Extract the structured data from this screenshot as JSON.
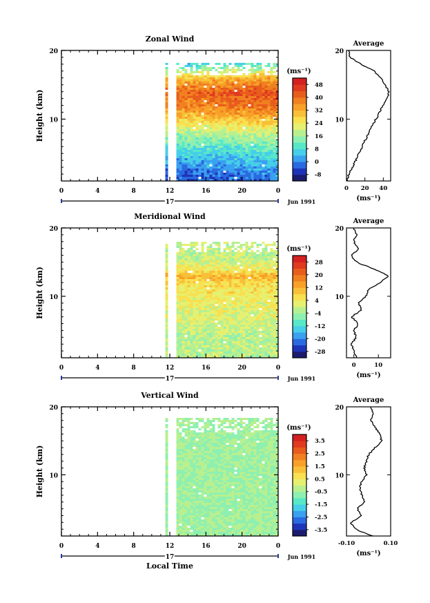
{
  "figure": {
    "xlabel": "Local Time",
    "date_label": "Jun 1991",
    "day_label": "17",
    "xticks": [
      "0",
      "4",
      "8",
      "12",
      "16",
      "20",
      "0"
    ],
    "yticks": [
      "20",
      "10"
    ],
    "ylabel": "Height (km)",
    "unit_label": "(ms⁻¹)",
    "average_title": "Average"
  },
  "chart_data": [
    {
      "type": "heatmap",
      "title": "Zonal Wind",
      "xlabel": "Local Time",
      "ylabel": "Height (km)",
      "xlim": [
        0,
        24
      ],
      "ylim": [
        1,
        20
      ],
      "data_start_hour": 11.5,
      "data_gap_hours": [
        12.1,
        12.6
      ],
      "colorbar": {
        "label": "(ms⁻¹)",
        "ticks": [
          "48",
          "40",
          "32",
          "24",
          "16",
          "8",
          "0",
          "-8"
        ],
        "levels": [
          -8,
          -4,
          0,
          4,
          8,
          12,
          16,
          20,
          24,
          28,
          32,
          36,
          40,
          44,
          48,
          52
        ]
      },
      "height_km": [
        2,
        4,
        6,
        8,
        10,
        12,
        14,
        16,
        18,
        19
      ],
      "mean_value": [
        0,
        6,
        12,
        20,
        30,
        40,
        44,
        34,
        12,
        2
      ],
      "average_profile": {
        "title": "Average",
        "xlabel": "(ms⁻¹)",
        "xticks": [
          "0",
          "20",
          "40"
        ],
        "xlim": [
          0,
          48
        ],
        "height_km": [
          1,
          2,
          4,
          6,
          8,
          10,
          12,
          13,
          14,
          16,
          17,
          18,
          19,
          20
        ],
        "values": [
          0,
          3,
          10,
          17,
          24,
          32,
          40,
          44,
          46,
          38,
          30,
          16,
          4,
          2
        ]
      }
    },
    {
      "type": "heatmap",
      "title": "Meridional Wind",
      "xlabel": "Local Time",
      "ylabel": "Height (km)",
      "xlim": [
        0,
        24
      ],
      "ylim": [
        1,
        20
      ],
      "data_start_hour": 11.5,
      "data_gap_hours": [
        12.1,
        12.6
      ],
      "colorbar": {
        "label": "(ms⁻¹)",
        "ticks": [
          "28",
          "20",
          "12",
          "4",
          "-4",
          "-12",
          "-20",
          "-28"
        ],
        "levels": [
          -28,
          -24,
          -20,
          -16,
          -12,
          -8,
          -4,
          0,
          4,
          8,
          12,
          16,
          20,
          24,
          28,
          32
        ]
      },
      "height_km": [
        2,
        4,
        6,
        8,
        10,
        12,
        13,
        14,
        16,
        18
      ],
      "mean_value": [
        2,
        2,
        4,
        6,
        8,
        10,
        16,
        8,
        2,
        4
      ],
      "average_profile": {
        "title": "Average",
        "xlabel": "(ms⁻¹)",
        "xticks": [
          "0",
          "10"
        ],
        "xlim": [
          -3,
          15
        ],
        "height_km": [
          1,
          2,
          3,
          4,
          5,
          6,
          7,
          8,
          9,
          10,
          11,
          12,
          13,
          14,
          15,
          16,
          17,
          18,
          19,
          20
        ],
        "values": [
          1,
          0,
          -1,
          1,
          0,
          2,
          -1,
          3,
          2,
          5,
          6,
          11,
          14,
          8,
          1,
          -1,
          2,
          0,
          1,
          0
        ]
      }
    },
    {
      "type": "heatmap",
      "title": "Vertical Wind",
      "xlabel": "Local Time",
      "ylabel": "Height (km)",
      "xlim": [
        0,
        24
      ],
      "ylim": [
        1,
        20
      ],
      "data_start_hour": 11.5,
      "data_gap_hours": [
        12.1,
        12.6
      ],
      "colorbar": {
        "label": "(ms⁻¹)",
        "ticks": [
          "3.5",
          "2.5",
          "1.5",
          "0.5",
          "-0.5",
          "-1.5",
          "-2.5",
          "-3.5"
        ],
        "levels": [
          -3.5,
          -3.0,
          -2.5,
          -2.0,
          -1.5,
          -1.0,
          -0.5,
          0,
          0.5,
          1.0,
          1.5,
          2.0,
          2.5,
          3.0,
          3.5,
          4.0
        ]
      },
      "height_km": [
        2,
        4,
        6,
        8,
        10,
        12,
        14,
        16,
        18,
        19
      ],
      "mean_value": [
        0,
        0,
        0,
        0,
        0,
        0,
        0,
        0,
        0,
        0
      ],
      "average_profile": {
        "title": "Average",
        "xlabel": "(ms⁻¹)",
        "xticks": [
          "-0.10",
          "0.10"
        ],
        "xlim": [
          -0.1,
          0.1
        ],
        "height_km": [
          1,
          2,
          3,
          4,
          5,
          6,
          7,
          8,
          9,
          10,
          11,
          12,
          13,
          14,
          15,
          16,
          17,
          18,
          19,
          20
        ],
        "values": [
          0.02,
          -0.06,
          -0.08,
          -0.03,
          -0.05,
          -0.02,
          -0.03,
          -0.04,
          -0.03,
          -0.01,
          -0.02,
          -0.01,
          0.0,
          0.03,
          0.06,
          0.05,
          0.03,
          0.01,
          0.02,
          0.01
        ]
      }
    }
  ]
}
